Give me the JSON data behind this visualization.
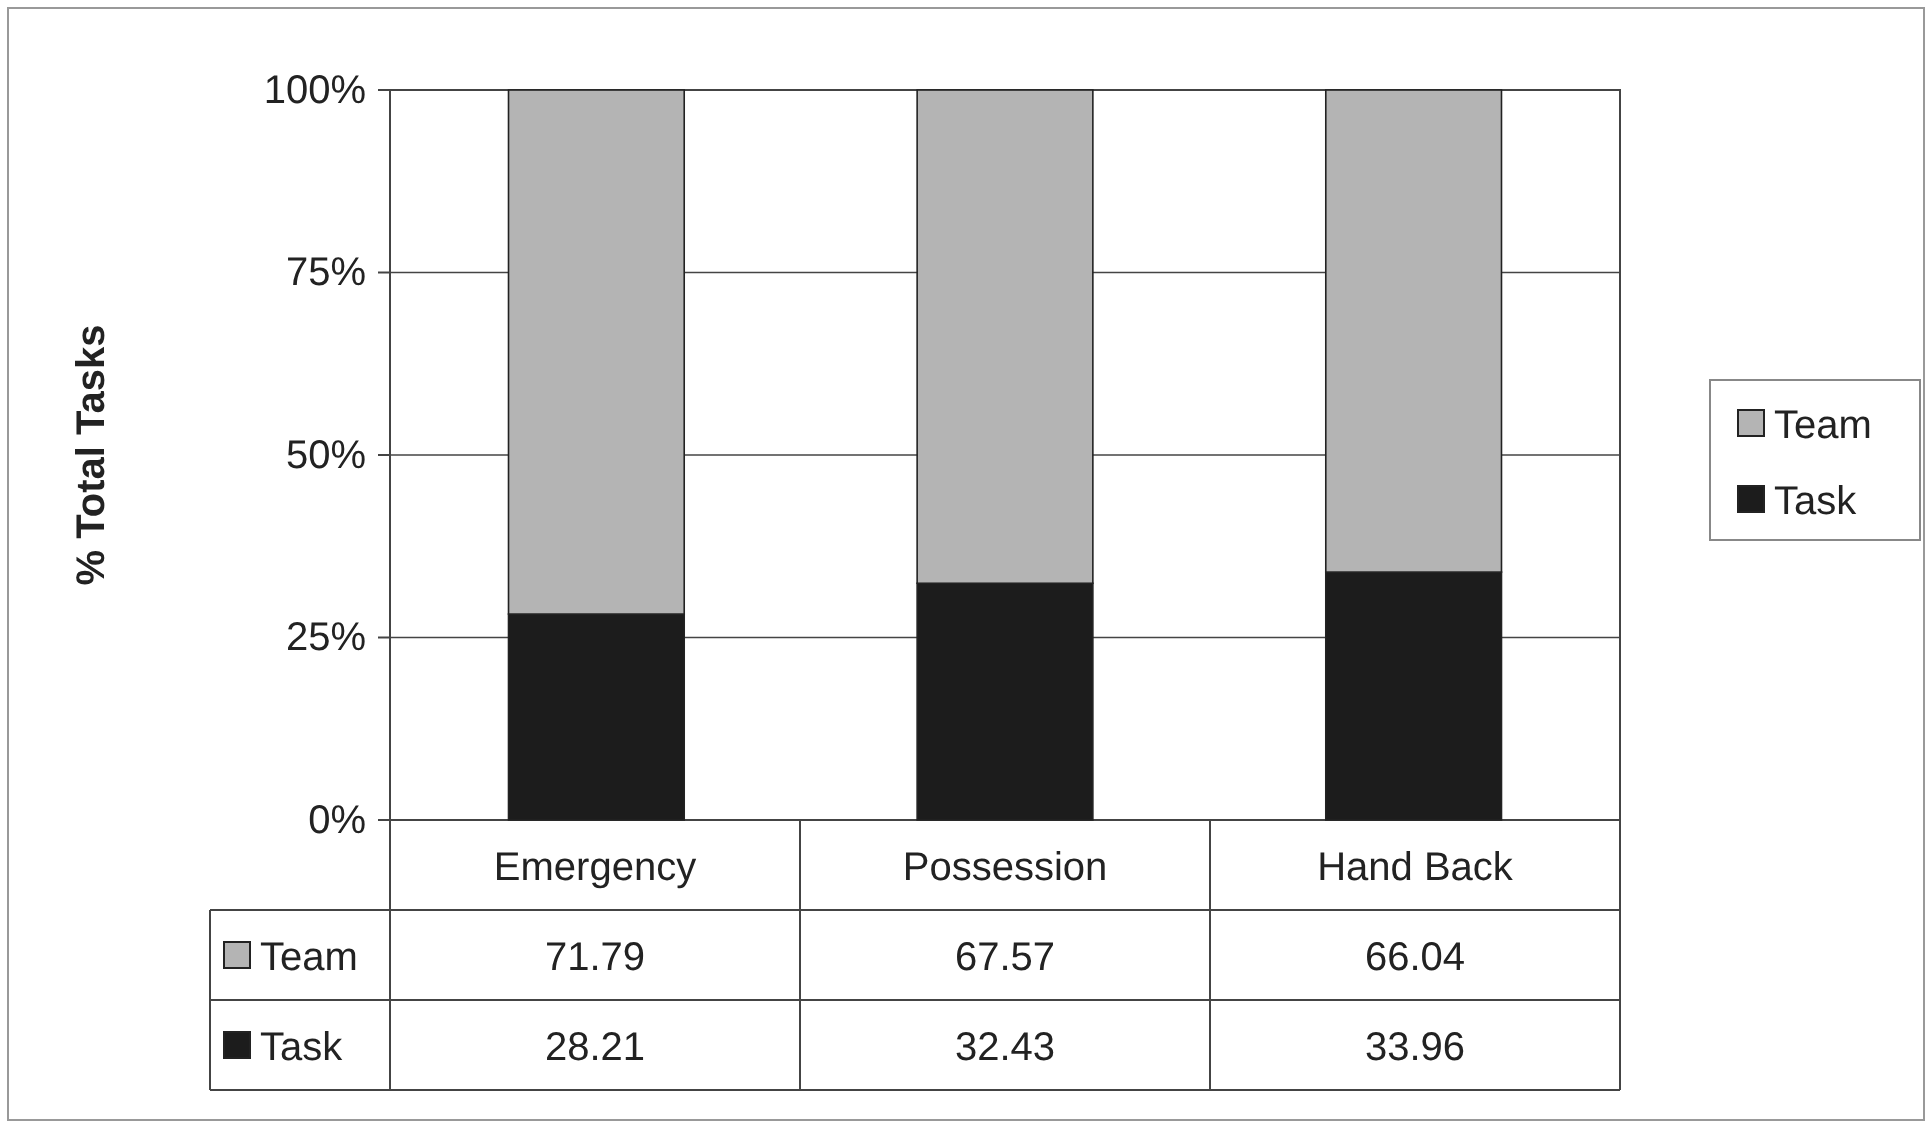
{
  "chart_data": {
    "type": "bar",
    "stacked": true,
    "ylabel": "% Total Tasks",
    "categories": [
      "Emergency",
      "Possession",
      "Hand Back"
    ],
    "series": [
      {
        "name": "Task",
        "color": "#1c1c1c",
        "values": [
          28.21,
          32.43,
          33.96
        ]
      },
      {
        "name": "Team",
        "color": "#b4b4b4",
        "values": [
          71.79,
          67.57,
          66.04
        ]
      }
    ],
    "ylim": [
      0,
      100
    ],
    "yticks": [
      {
        "value": 0,
        "label": "0%"
      },
      {
        "value": 25,
        "label": "25%"
      },
      {
        "value": 50,
        "label": "50%"
      },
      {
        "value": 75,
        "label": "75%"
      },
      {
        "value": 100,
        "label": "100%"
      }
    ],
    "grid": "y",
    "legend": "right",
    "data_labels": true
  }
}
